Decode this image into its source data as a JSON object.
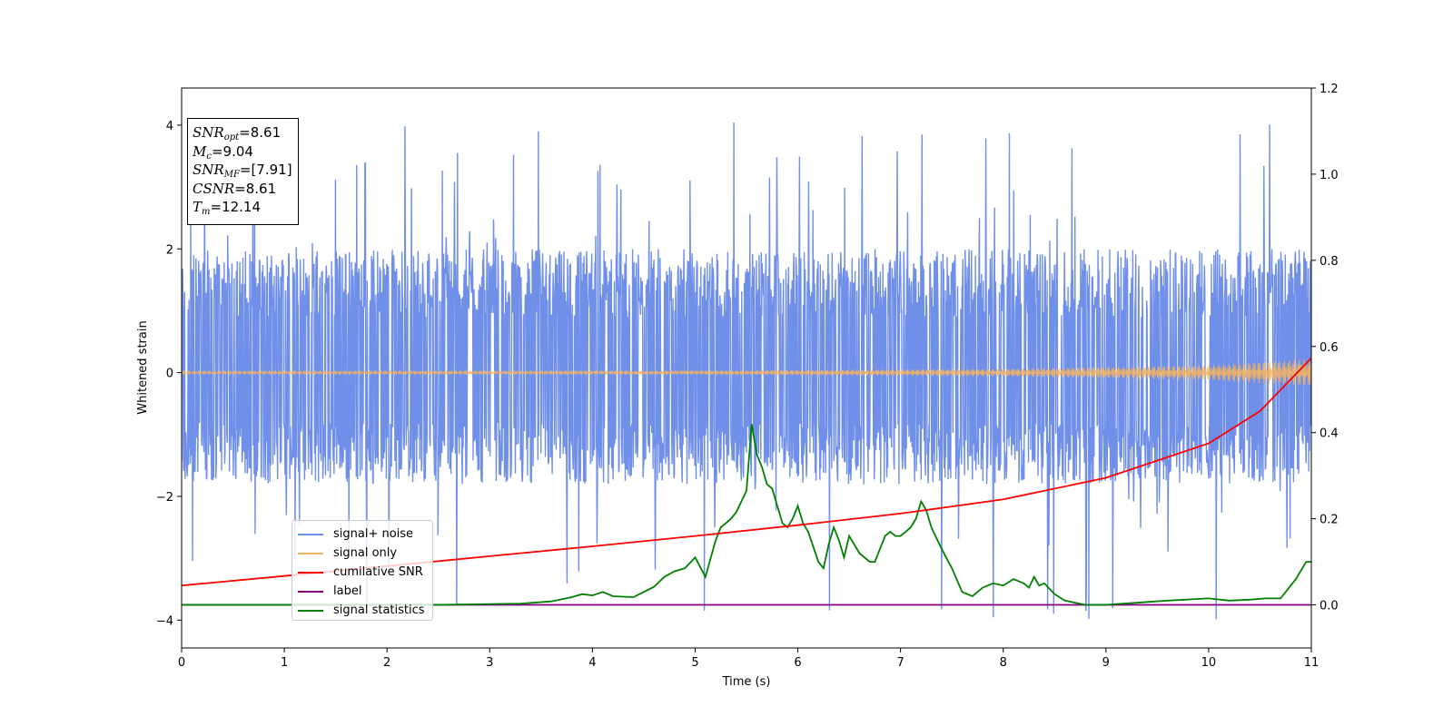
{
  "chart_data": {
    "type": "line",
    "xlabel": "Time (s)",
    "ylabel": "Whitened strain",
    "xlim": [
      0,
      11
    ],
    "ylim": [
      -4.45,
      4.6
    ],
    "y2lim": [
      -0.1,
      1.2
    ],
    "x_ticks": [
      "0",
      "1",
      "2",
      "3",
      "4",
      "5",
      "6",
      "7",
      "8",
      "9",
      "10",
      "11"
    ],
    "y_ticks": [
      "−4",
      "−2",
      "0",
      "2",
      "4"
    ],
    "y2_ticks": [
      "0.0",
      "0.2",
      "0.4",
      "0.6",
      "0.8",
      "1.0",
      "1.2"
    ],
    "x_tick_values": [
      0,
      1,
      2,
      3,
      4,
      5,
      6,
      7,
      8,
      9,
      10,
      11
    ],
    "y_tick_values": [
      -4,
      -2,
      0,
      2,
      4
    ],
    "y2_tick_values": [
      0,
      0.2,
      0.4,
      0.6,
      0.8,
      1.0,
      1.2
    ],
    "annotations": {
      "snr_opt": {
        "label": "SNR",
        "sub": "opt",
        "value": "=8.61"
      },
      "mc": {
        "label": "M",
        "sub": "c",
        "value": "=9.04"
      },
      "snr_mf": {
        "label": "SNR",
        "sub": "MF",
        "value": "=[7.91]"
      },
      "csnr": {
        "label": "CSNR",
        "value": "=8.61"
      },
      "tm": {
        "label": "T",
        "sub": "m",
        "value": "=12.14"
      }
    },
    "legend": {
      "placement": "lower-left",
      "entries": [
        {
          "label": "signal+ noise",
          "color": "#6f8fe8"
        },
        {
          "label": "signal only",
          "color": "#f5b461"
        },
        {
          "label": "cumilative SNR",
          "color": "#ff0000"
        },
        {
          "label": "label",
          "color": "#800080"
        },
        {
          "label": "signal statistics",
          "color": "#008000"
        }
      ]
    },
    "series": [
      {
        "name": "signal+ noise",
        "axis": "left",
        "color": "#6f8fe8",
        "envelope": {
          "x": [
            0,
            11
          ],
          "low": -1.8,
          "high": 2.0,
          "spike_max": 4.15,
          "spike_min": -4.05
        }
      },
      {
        "name": "signal only",
        "axis": "left",
        "color": "#f5b461",
        "amplitude": {
          "x": [
            0,
            5,
            8,
            10,
            11
          ],
          "values": [
            0.02,
            0.03,
            0.06,
            0.12,
            0.22
          ]
        }
      },
      {
        "name": "cumilative SNR",
        "axis": "right",
        "color": "#ff0000",
        "x": [
          0,
          1,
          2,
          3,
          4,
          5,
          6,
          7,
          8,
          9,
          10,
          10.5,
          11
        ],
        "y": [
          0.045,
          0.067,
          0.09,
          0.113,
          0.136,
          0.16,
          0.185,
          0.212,
          0.245,
          0.295,
          0.375,
          0.45,
          0.573
        ]
      },
      {
        "name": "label",
        "axis": "right",
        "color": "#800080",
        "x": [
          0,
          11
        ],
        "y": [
          0.0,
          0.0
        ]
      },
      {
        "name": "signal statistics",
        "axis": "right",
        "color": "#008000",
        "x": [
          0,
          0.5,
          1,
          1.5,
          2,
          2.5,
          3,
          3.3,
          3.6,
          3.8,
          3.9,
          4.0,
          4.1,
          4.2,
          4.4,
          4.5,
          4.6,
          4.7,
          4.8,
          4.9,
          5.0,
          5.1,
          5.2,
          5.25,
          5.3,
          5.35,
          5.4,
          5.5,
          5.55,
          5.6,
          5.65,
          5.7,
          5.75,
          5.8,
          5.85,
          5.9,
          5.95,
          6.0,
          6.05,
          6.1,
          6.2,
          6.25,
          6.3,
          6.35,
          6.4,
          6.45,
          6.5,
          6.55,
          6.6,
          6.7,
          6.75,
          6.8,
          6.85,
          6.9,
          6.95,
          7.0,
          7.05,
          7.1,
          7.15,
          7.2,
          7.25,
          7.3,
          7.4,
          7.5,
          7.6,
          7.7,
          7.8,
          7.9,
          8.0,
          8.1,
          8.2,
          8.25,
          8.3,
          8.35,
          8.4,
          8.5,
          8.6,
          8.8,
          9.0,
          9.1,
          9.3,
          9.6,
          10.0,
          10.2,
          10.4,
          10.55,
          10.7,
          10.85,
          10.95,
          11.0
        ],
        "y": [
          0.0,
          0.0,
          0.0,
          0.0,
          0.0,
          0.0,
          0.002,
          0.003,
          0.008,
          0.018,
          0.025,
          0.022,
          0.03,
          0.02,
          0.018,
          0.03,
          0.042,
          0.065,
          0.078,
          0.085,
          0.11,
          0.065,
          0.15,
          0.18,
          0.19,
          0.2,
          0.215,
          0.265,
          0.42,
          0.35,
          0.32,
          0.28,
          0.27,
          0.23,
          0.19,
          0.18,
          0.2,
          0.23,
          0.19,
          0.17,
          0.1,
          0.085,
          0.14,
          0.18,
          0.15,
          0.11,
          0.16,
          0.14,
          0.12,
          0.1,
          0.1,
          0.13,
          0.16,
          0.17,
          0.16,
          0.16,
          0.17,
          0.18,
          0.2,
          0.24,
          0.22,
          0.18,
          0.13,
          0.085,
          0.03,
          0.02,
          0.04,
          0.05,
          0.045,
          0.06,
          0.05,
          0.04,
          0.065,
          0.045,
          0.05,
          0.025,
          0.01,
          0.0,
          0.0,
          0.002,
          0.005,
          0.01,
          0.015,
          0.01,
          0.012,
          0.015,
          0.015,
          0.06,
          0.1,
          0.1
        ]
      }
    ]
  }
}
